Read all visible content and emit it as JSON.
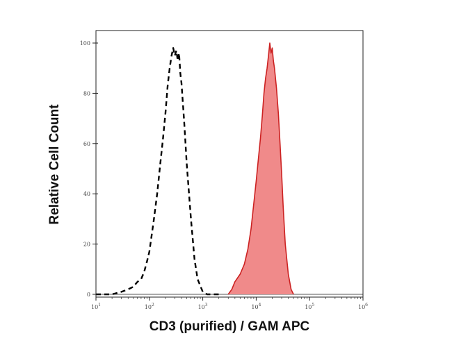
{
  "chart_data": {
    "type": "area",
    "title": "",
    "xlabel": "CD3 (purified) / GAM APC",
    "ylabel": "Relative Cell Count",
    "x_scale": "log",
    "xlim": [
      10,
      1000000
    ],
    "ylim": [
      0,
      100
    ],
    "grid": false,
    "legend": "none",
    "x_ticks": [
      {
        "value": 10,
        "base": "10",
        "exp": "1"
      },
      {
        "value": 100,
        "base": "10",
        "exp": "2"
      },
      {
        "value": 1000,
        "base": "10",
        "exp": "3"
      },
      {
        "value": 10000,
        "base": "10",
        "exp": "4"
      },
      {
        "value": 100000,
        "base": "10",
        "exp": "5"
      },
      {
        "value": 1000000,
        "base": "10",
        "exp": "6"
      }
    ],
    "y_ticks": [
      {
        "value": 0,
        "label": "0"
      },
      {
        "value": 20,
        "label": "20"
      },
      {
        "value": 40,
        "label": "40"
      },
      {
        "value": 60,
        "label": "60"
      },
      {
        "value": 80,
        "label": "80"
      },
      {
        "value": 100,
        "label": "100"
      }
    ],
    "series": [
      {
        "style": "dashed",
        "color": "#000000",
        "fill": "none",
        "x": [
          10,
          15,
          20,
          30,
          40,
          50,
          60,
          70,
          80,
          90,
          100,
          120,
          140,
          160,
          180,
          200,
          220,
          240,
          260,
          280,
          300,
          320,
          340,
          360,
          380,
          400,
          450,
          500,
          600,
          700,
          800,
          1000,
          1200,
          1500,
          2000
        ],
        "y": [
          0,
          0,
          0,
          1,
          2,
          3,
          5,
          6,
          9,
          13,
          17,
          29,
          40,
          52,
          62,
          72,
          83,
          90,
          95,
          98,
          95,
          97,
          93,
          96,
          88,
          84,
          68,
          52,
          30,
          14,
          6,
          1,
          0,
          0,
          0
        ]
      },
      {
        "style": "solid",
        "color": "#cc2222",
        "fill": "#f08a8a",
        "x": [
          3000,
          3500,
          4000,
          5000,
          6000,
          7000,
          8000,
          9000,
          10000,
          11000,
          12000,
          13000,
          14000,
          15000,
          16000,
          17000,
          18000,
          19000,
          20000,
          21000,
          22000,
          24000,
          26000,
          28000,
          30000,
          32000,
          35000,
          40000,
          45000,
          50000
        ],
        "y": [
          0,
          2,
          5,
          8,
          12,
          18,
          26,
          36,
          45,
          54,
          62,
          71,
          80,
          86,
          90,
          95,
          100,
          96,
          98,
          93,
          90,
          82,
          72,
          60,
          48,
          35,
          20,
          8,
          2,
          0
        ]
      }
    ]
  }
}
